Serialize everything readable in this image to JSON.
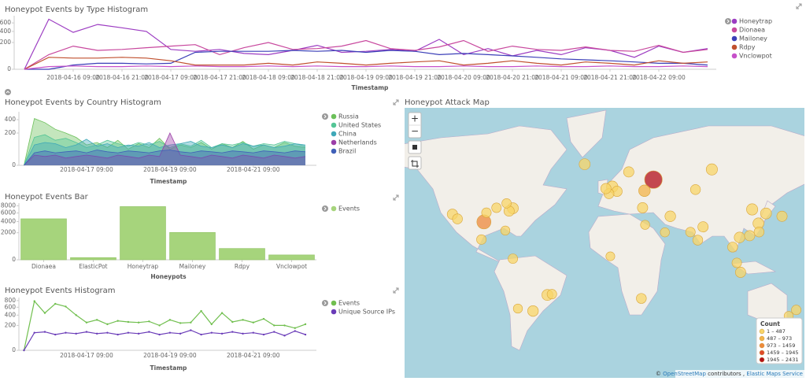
{
  "chart_data": [
    {
      "type": "line",
      "title": "Honeypot Events by Type Histogram",
      "x_label": "Timestamp",
      "yscale": "sqrt",
      "ylim": [
        0,
        800
      ],
      "yticks": [
        0,
        200,
        400,
        600
      ],
      "categories": [
        null,
        null,
        "2018-04-16 09:00",
        null,
        "2018-04-16 21:00",
        null,
        "2018-04-17 09:00",
        null,
        "2018-04-17 21:00",
        null,
        "2018-04-18 09:00",
        null,
        "2018-04-18 21:00",
        null,
        "2018-04-19 09:00",
        null,
        "2018-04-19 21:00",
        null,
        "2018-04-20 09:00",
        null,
        "2018-04-20 21:00",
        null,
        "2018-04-21 09:00",
        null,
        "2018-04-21 21:00",
        null,
        "2018-04-22 09:00",
        null,
        null
      ],
      "series": [
        {
          "name": "Honeytrap",
          "color": "#9c3cc2",
          "values": [
            0,
            700,
            380,
            560,
            480,
            400,
            110,
            90,
            110,
            70,
            60,
            100,
            160,
            80,
            90,
            110,
            90,
            250,
            60,
            120,
            50,
            100,
            60,
            130,
            100,
            40,
            150,
            80,
            120
          ]
        },
        {
          "name": "Dionaea",
          "color": "#c8489e",
          "values": [
            0,
            60,
            150,
            100,
            110,
            130,
            150,
            170,
            60,
            130,
            200,
            110,
            120,
            150,
            230,
            120,
            100,
            140,
            230,
            90,
            150,
            110,
            100,
            140,
            100,
            90,
            160,
            80,
            110
          ]
        },
        {
          "name": "Mailoney",
          "color": "#3b3fb8",
          "values": [
            0,
            0,
            5,
            10,
            10,
            8,
            10,
            80,
            90,
            90,
            90,
            100,
            90,
            100,
            80,
            100,
            90,
            60,
            70,
            60,
            50,
            40,
            30,
            25,
            20,
            15,
            10,
            10,
            5
          ]
        },
        {
          "name": "Rdpy",
          "color": "#c0502e",
          "values": [
            0,
            40,
            35,
            35,
            40,
            35,
            20,
            5,
            5,
            5,
            10,
            5,
            15,
            10,
            5,
            10,
            15,
            20,
            5,
            10,
            20,
            10,
            5,
            15,
            10,
            5,
            20,
            10,
            15
          ]
        },
        {
          "name": "Vnclowpot",
          "color": "#c650c9",
          "values": [
            0,
            2,
            3,
            2,
            2,
            3,
            2,
            3,
            2,
            2,
            3,
            2,
            3,
            2,
            2,
            3,
            2,
            2,
            3,
            2,
            2,
            3,
            2,
            2,
            3,
            2,
            2,
            3,
            2
          ]
        }
      ]
    },
    {
      "type": "area",
      "title": "Honeypot Events by Country Histogram",
      "x_label": "Timestamp",
      "yscale": "sqrt",
      "ylim": [
        0,
        550
      ],
      "yticks": [
        0,
        200,
        400
      ],
      "categories": [
        null,
        null,
        null,
        null,
        null,
        null,
        "2018-04-17 09:00",
        null,
        null,
        null,
        null,
        null,
        null,
        null,
        "2018-04-19 09:00",
        null,
        null,
        null,
        null,
        null,
        null,
        null,
        "2018-04-21 09:00",
        null,
        null,
        null,
        null,
        null
      ],
      "series": [
        {
          "name": "Russia",
          "color": "#6cc05a",
          "values": [
            0,
            420,
            350,
            250,
            200,
            150,
            80,
            100,
            60,
            120,
            50,
            90,
            60,
            140,
            50,
            80,
            60,
            100,
            50,
            90,
            60,
            110,
            50,
            80,
            60,
            100,
            70,
            60
          ]
        },
        {
          "name": "United States",
          "color": "#54c596",
          "values": [
            0,
            150,
            180,
            120,
            140,
            100,
            60,
            80,
            120,
            90,
            70,
            100,
            80,
            110,
            60,
            90,
            70,
            120,
            60,
            90,
            80,
            100,
            70,
            90,
            80,
            110,
            90,
            70
          ]
        },
        {
          "name": "China",
          "color": "#3fa8b8",
          "values": [
            0,
            80,
            100,
            90,
            60,
            80,
            130,
            70,
            90,
            60,
            80,
            70,
            100,
            60,
            80,
            90,
            110,
            70,
            60,
            80,
            60,
            90,
            70,
            80,
            60,
            70,
            90,
            80
          ]
        },
        {
          "name": "Netherlands",
          "color": "#9b3ea8",
          "values": [
            0,
            20,
            15,
            20,
            10,
            15,
            20,
            15,
            10,
            20,
            15,
            10,
            20,
            15,
            200,
            20,
            15,
            10,
            20,
            15,
            10,
            20,
            15,
            10,
            20,
            15,
            10,
            15
          ]
        },
        {
          "name": "Brazil",
          "color": "#4060b8",
          "values": [
            0,
            30,
            40,
            30,
            35,
            40,
            30,
            45,
            35,
            30,
            40,
            35,
            30,
            40,
            45,
            35,
            30,
            40,
            35,
            30,
            40,
            35,
            30,
            40,
            35,
            30,
            40,
            35
          ]
        }
      ]
    },
    {
      "type": "bar",
      "title": "Honeypot Events Bar",
      "x_label": "Honeypots",
      "yscale": "sqrt",
      "ylim": [
        0,
        8800
      ],
      "yticks": [
        0,
        2000,
        4000,
        6000,
        8000
      ],
      "categories": [
        "Dionaea",
        "ElasticPot",
        "Honeytrap",
        "Mailoney",
        "Rdpy",
        "Vnclowpot"
      ],
      "series": [
        {
          "name": "Events",
          "color": "#a6d47c",
          "values": [
            4600,
            13,
            7750,
            2050,
            350,
            64
          ]
        }
      ]
    },
    {
      "type": "line",
      "title": "Honeypot Events Histogram",
      "x_label": "Timestamp",
      "yscale": "sqrt",
      "ylim": [
        0,
        900
      ],
      "yticks": [
        0,
        200,
        400,
        600,
        800
      ],
      "categories": [
        null,
        null,
        null,
        null,
        null,
        null,
        "2018-04-17 09:00",
        null,
        null,
        null,
        null,
        null,
        null,
        null,
        "2018-04-19 09:00",
        null,
        null,
        null,
        null,
        null,
        null,
        null,
        "2018-04-21 09:00",
        null,
        null,
        null,
        null,
        null
      ],
      "series": [
        {
          "name": "Events",
          "color": "#71bf4f",
          "values": [
            0,
            780,
            450,
            700,
            620,
            400,
            250,
            300,
            220,
            280,
            260,
            250,
            270,
            200,
            300,
            240,
            250,
            500,
            220,
            450,
            260,
            300,
            250,
            320,
            200,
            200,
            160,
            220
          ]
        },
        {
          "name": "Unique Source IPs",
          "color": "#6a3cb8",
          "values": [
            0,
            100,
            110,
            80,
            100,
            90,
            110,
            90,
            100,
            80,
            100,
            90,
            110,
            80,
            100,
            90,
            130,
            80,
            100,
            90,
            110,
            90,
            100,
            80,
            110,
            70,
            120,
            80
          ]
        }
      ]
    }
  ],
  "map": {
    "title": "Honeypot Attack Map",
    "controls": [
      "+",
      "−"
    ],
    "legend": {
      "title": "Count",
      "bins": [
        {
          "label": "1 – 487",
          "from": 1,
          "to": 487,
          "color": "#f8d568"
        },
        {
          "label": "487 – 973",
          "from": 487,
          "to": 973,
          "color": "#f3b44a"
        },
        {
          "label": "973 – 1459",
          "from": 973,
          "to": 1459,
          "color": "#ee8a3c"
        },
        {
          "label": "1459 – 1945",
          "from": 1459,
          "to": 1945,
          "color": "#df4a2c"
        },
        {
          "label": "1945 – 2431",
          "from": 1945,
          "to": 2431,
          "color": "#b3101b"
        }
      ]
    },
    "attribution": {
      "prefix": "©",
      "osm": "OpenStreetMap",
      "middle": "contributors ,",
      "ems": "Elastic Maps Service"
    },
    "points": [
      {
        "lon": 37.6,
        "lat": 55.7,
        "count": 2300
      },
      {
        "lon": 84,
        "lat": 60,
        "count": 450
      },
      {
        "lon": -17,
        "lat": 62,
        "count": 400
      },
      {
        "lon": 116,
        "lat": 40,
        "count": 450
      },
      {
        "lon": 121,
        "lat": 31,
        "count": 400
      },
      {
        "lon": 4.9,
        "lat": 52.4,
        "count": 470
      },
      {
        "lon": 8.7,
        "lat": 50.1,
        "count": 300
      },
      {
        "lon": 2.3,
        "lat": 48.9,
        "count": 250
      },
      {
        "lon": -0.1,
        "lat": 51.5,
        "count": 300
      },
      {
        "lon": -97,
        "lat": 32,
        "count": 1100
      },
      {
        "lon": -74,
        "lat": 40.7,
        "count": 400
      },
      {
        "lon": -122,
        "lat": 37,
        "count": 300
      },
      {
        "lon": -118,
        "lat": 34,
        "count": 250
      },
      {
        "lon": -87,
        "lat": 41,
        "count": 200
      },
      {
        "lon": -77,
        "lat": 39,
        "count": 300
      },
      {
        "lon": -80,
        "lat": 26,
        "count": 150
      },
      {
        "lon": -95,
        "lat": 38,
        "count": 200
      },
      {
        "lon": -79,
        "lat": 43.6,
        "count": 180
      },
      {
        "lon": -99,
        "lat": 19.4,
        "count": 200
      },
      {
        "lon": -46.6,
        "lat": -23.5,
        "count": 400
      },
      {
        "lon": -43,
        "lat": -22.9,
        "count": 200
      },
      {
        "lon": -58,
        "lat": -34.6,
        "count": 350
      },
      {
        "lon": -74,
        "lat": 4.6,
        "count": 200
      },
      {
        "lon": -70,
        "lat": -33,
        "count": 150
      },
      {
        "lon": 28,
        "lat": -26,
        "count": 250
      },
      {
        "lon": 3.4,
        "lat": 6.5,
        "count": 120
      },
      {
        "lon": 31,
        "lat": 30,
        "count": 150
      },
      {
        "lon": 77,
        "lat": 28.6,
        "count": 300
      },
      {
        "lon": 72.8,
        "lat": 19,
        "count": 250
      },
      {
        "lon": 103.8,
        "lat": 1.3,
        "count": 200
      },
      {
        "lon": 106,
        "lat": 21,
        "count": 350
      },
      {
        "lon": 127,
        "lat": 37.5,
        "count": 400
      },
      {
        "lon": 139.7,
        "lat": 35.7,
        "count": 300
      },
      {
        "lon": 121.5,
        "lat": 25,
        "count": 250
      },
      {
        "lon": 151,
        "lat": -33.9,
        "count": 200
      },
      {
        "lon": 145,
        "lat": -37.8,
        "count": 150
      },
      {
        "lon": 29,
        "lat": 41,
        "count": 300
      },
      {
        "lon": 51,
        "lat": 35.7,
        "count": 350
      },
      {
        "lon": 30.5,
        "lat": 50.4,
        "count": 500
      },
      {
        "lon": 71,
        "lat": 51,
        "count": 250
      },
      {
        "lon": 18,
        "lat": 59,
        "count": 300
      },
      {
        "lon": 106.8,
        "lat": -6.2,
        "count": 300
      },
      {
        "lon": 114,
        "lat": 22.3,
        "count": 300
      },
      {
        "lon": 100.5,
        "lat": 13.7,
        "count": 250
      },
      {
        "lon": 67,
        "lat": 24.9,
        "count": 200
      },
      {
        "lon": 46.7,
        "lat": 24.7,
        "count": 150
      }
    ]
  }
}
